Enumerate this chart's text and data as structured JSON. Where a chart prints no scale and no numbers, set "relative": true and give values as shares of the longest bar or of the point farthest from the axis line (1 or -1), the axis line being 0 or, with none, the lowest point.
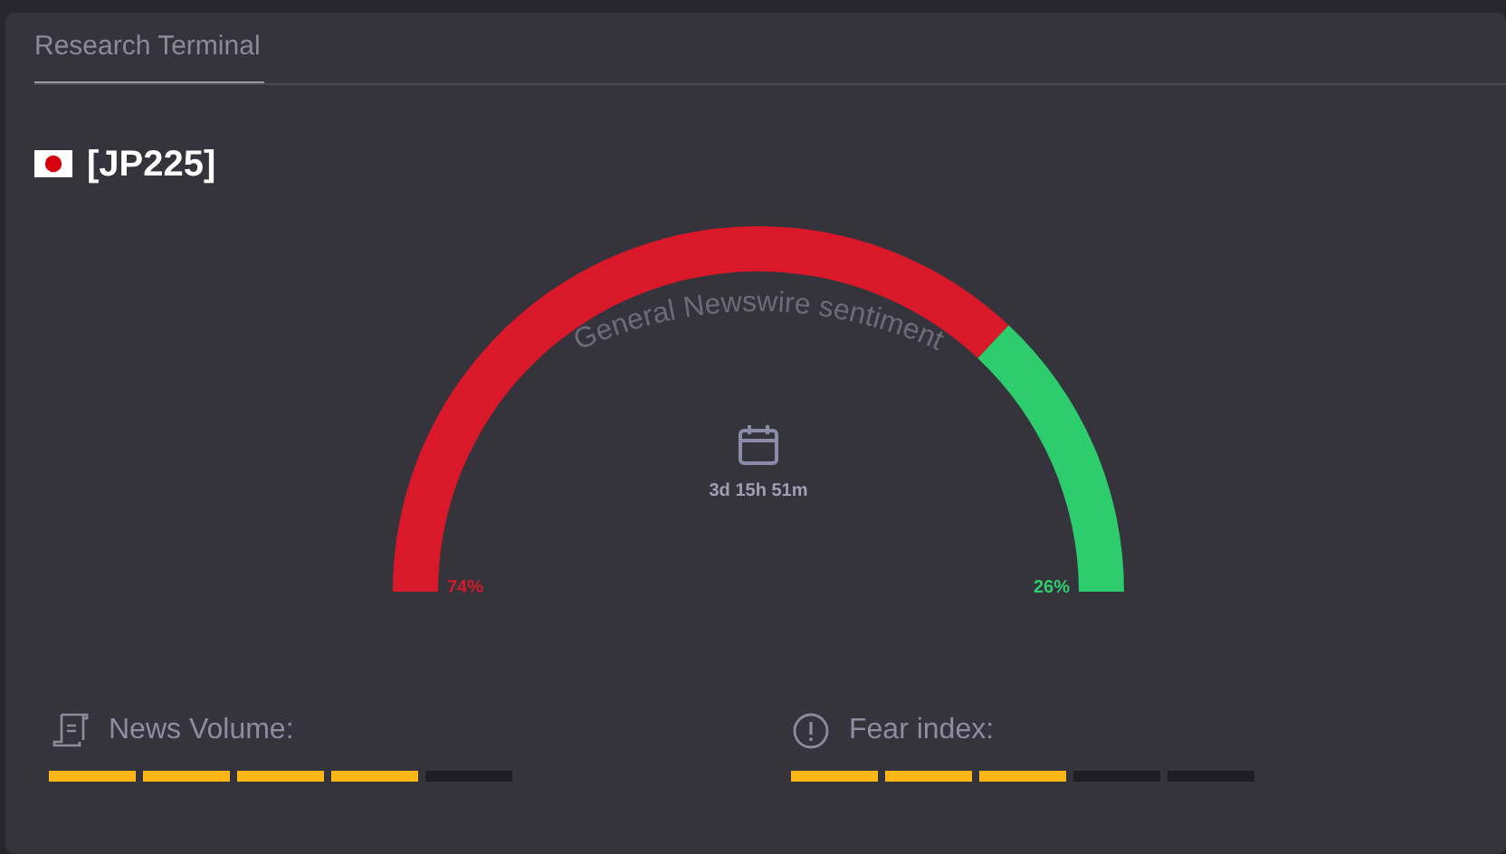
{
  "chart_data": [
    {
      "type": "donut",
      "title": "[JP225]",
      "subtitle": "General Newswire sentiment",
      "annotations": [
        "Research Terminal",
        "3d 15h 51m"
      ],
      "categories": [
        null,
        null
      ],
      "values": [
        74,
        26
      ],
      "colors": [
        "#d9192a",
        "#2dcd6e"
      ],
      "value_labels": [
        "74%",
        "26%"
      ]
    },
    {
      "type": "bar",
      "title": "News Volume:",
      "categories": [
        null,
        null,
        null,
        null,
        null
      ],
      "values": [
        1,
        1,
        1,
        1,
        1
      ],
      "colors": [
        "#fcb716",
        "#fcb716",
        "#fcb716",
        "#fcb716",
        "#1f1e24"
      ],
      "relative": true
    },
    {
      "type": "bar",
      "title": "Fear index:",
      "categories": [
        null,
        null,
        null,
        null,
        null
      ],
      "values": [
        1,
        1,
        1,
        1,
        1
      ],
      "colors": [
        "#fcb716",
        "#fcb716",
        "#fcb716",
        "#1f1e24",
        "#1f1e24"
      ],
      "relative": true
    }
  ]
}
